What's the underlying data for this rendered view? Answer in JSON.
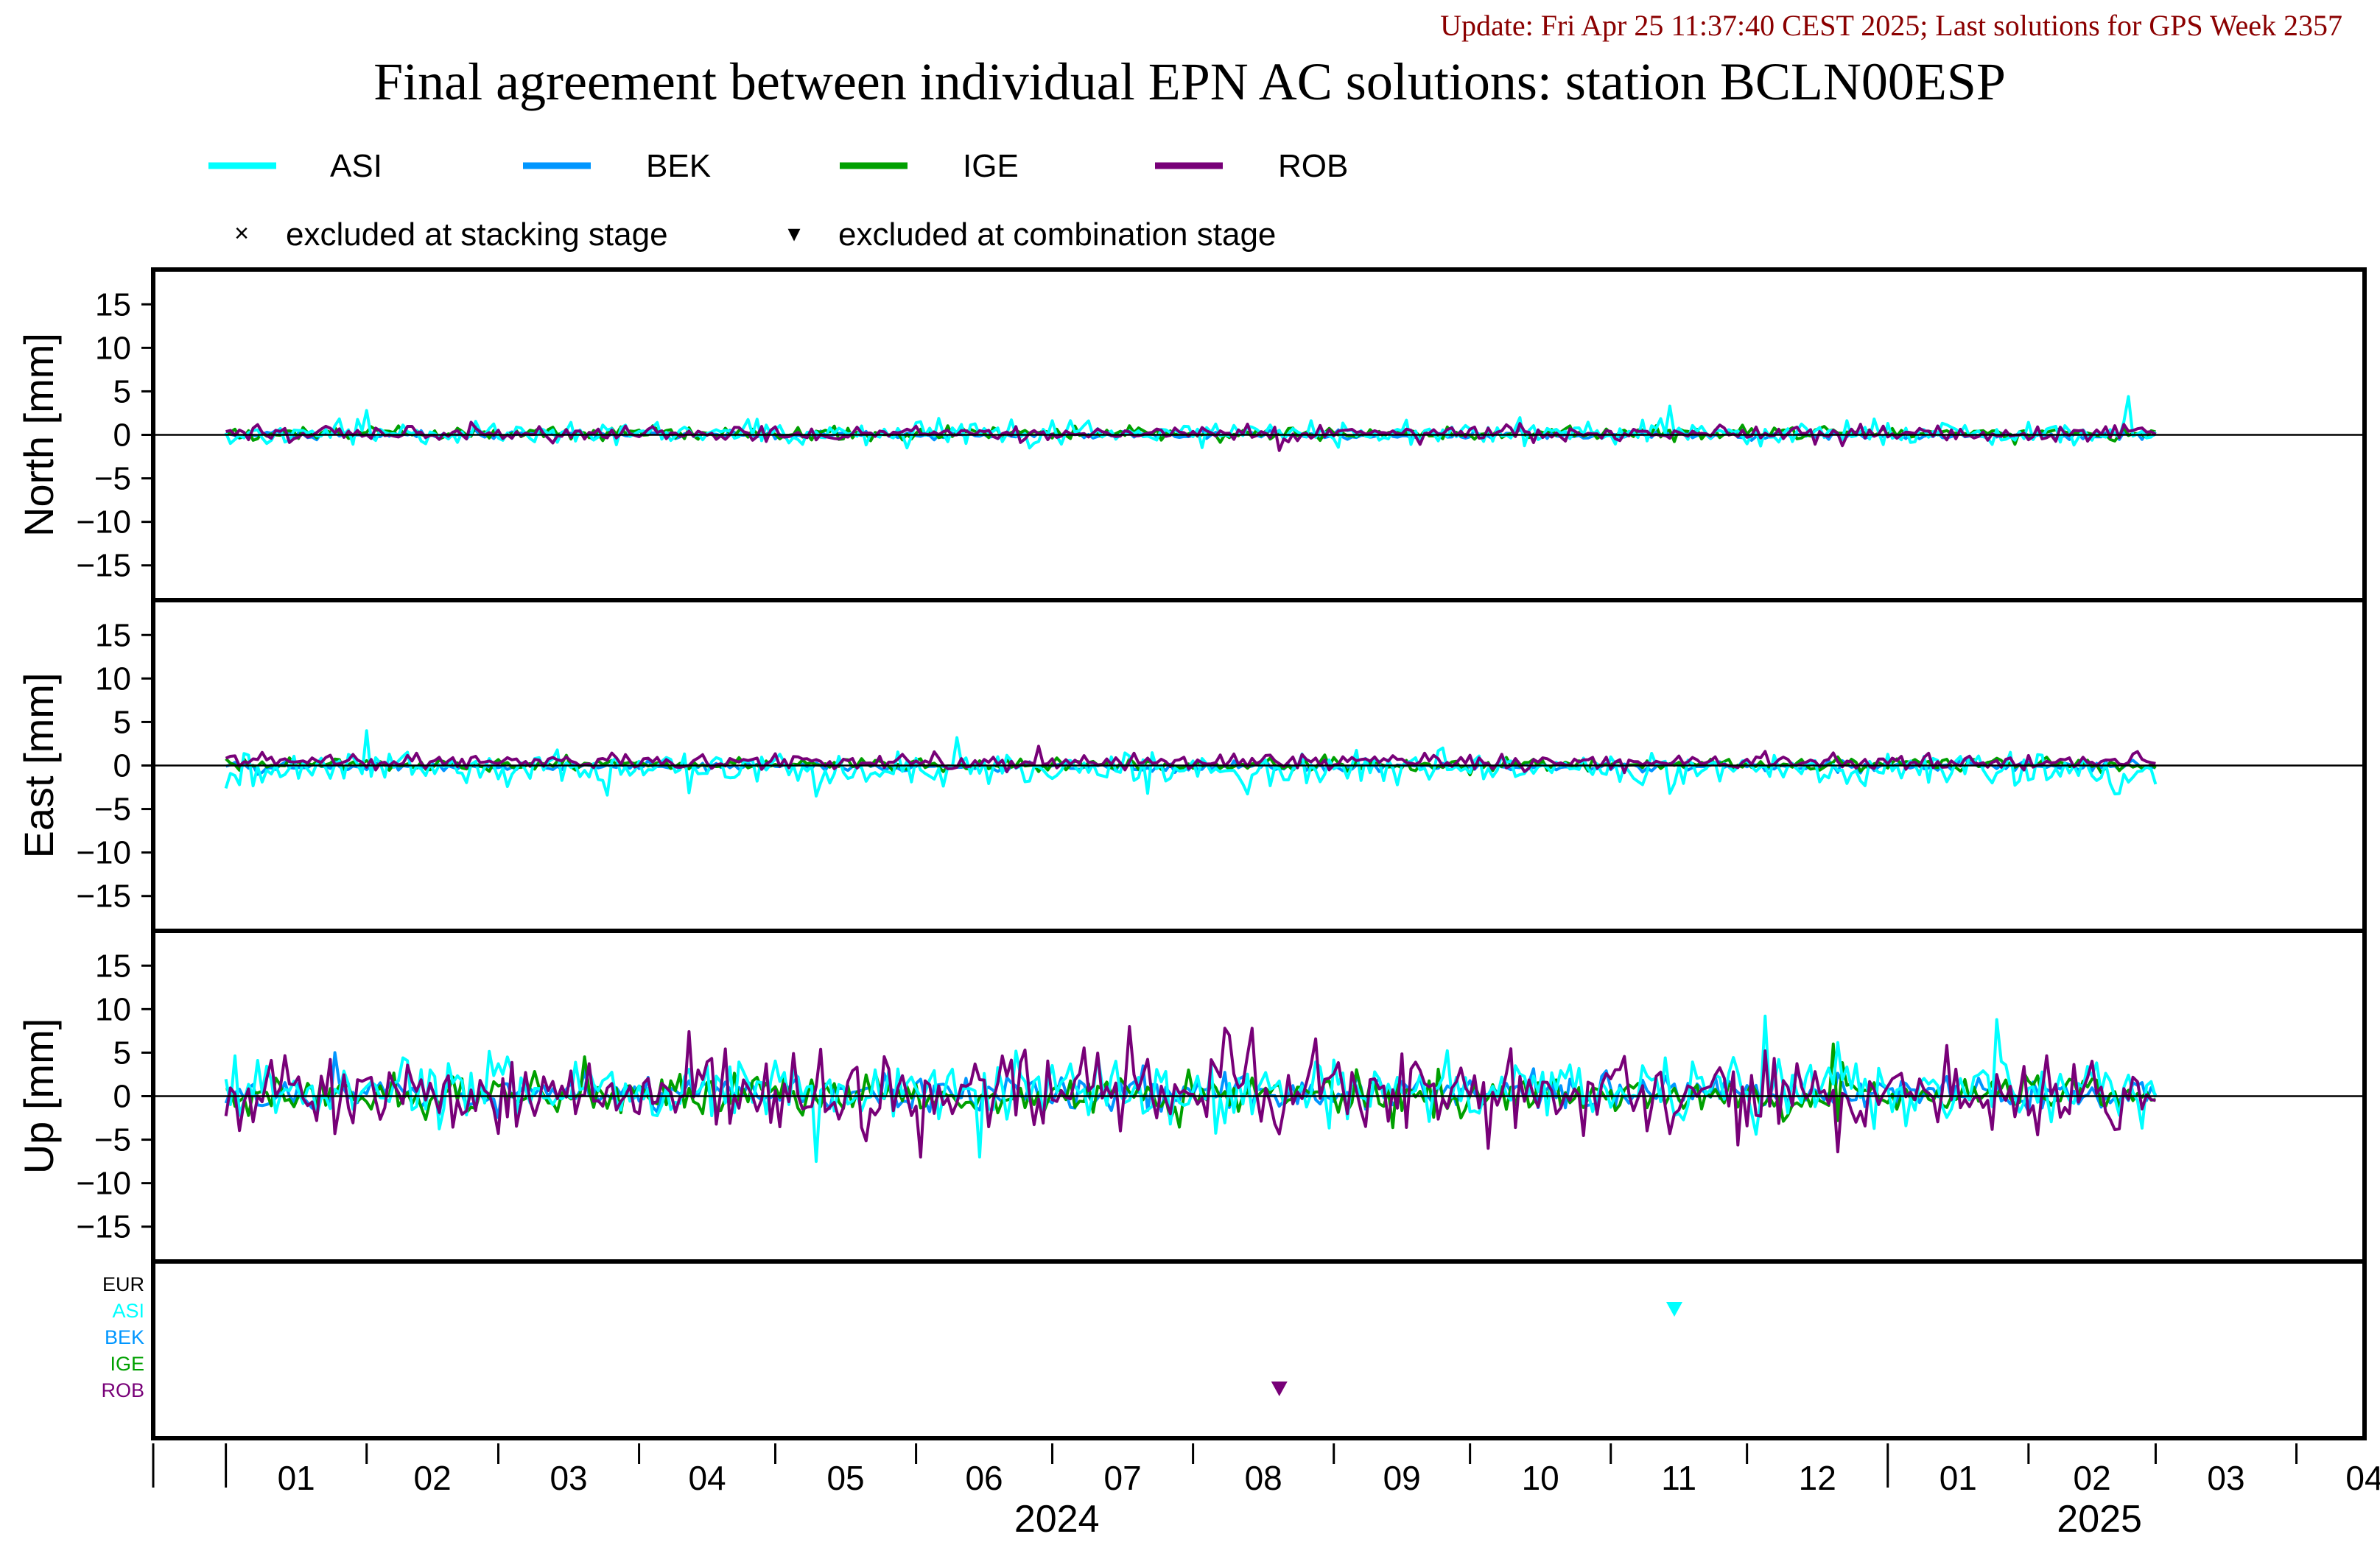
{
  "header": {
    "update_line": "Update: Fri Apr 25 11:37:40 CEST 2025; Last solutions for GPS Week 2357",
    "title": "Final agreement between individual EPN AC solutions: station BCLN00ESP"
  },
  "legend": {
    "series": [
      {
        "name": "ASI",
        "color": "#00FFFF"
      },
      {
        "name": "BEK",
        "color": "#0096FF"
      },
      {
        "name": "IGE",
        "color": "#00A000"
      },
      {
        "name": "ROB",
        "color": "#780078"
      }
    ],
    "markers": [
      {
        "symbol": "×",
        "label": "excluded at stacking stage"
      },
      {
        "symbol": "▾",
        "label": "excluded at combination stage"
      }
    ]
  },
  "colors": {
    "ASI": "#00FFFF",
    "BEK": "#0096FF",
    "IGE": "#00A000",
    "ROB": "#780078",
    "EUR": "#000000",
    "frame": "#000000"
  },
  "chart_data": {
    "type": "line",
    "x_range": [
      "2023-12-16",
      "2025-04-16"
    ],
    "y_range": [
      -19,
      19
    ],
    "y_ticks": [
      15,
      10,
      5,
      0,
      -5,
      -10,
      -15
    ],
    "y_tick_labels": [
      "15",
      "10",
      "5",
      "0",
      "−5",
      "−10",
      "−15"
    ],
    "month_labels": [
      "01",
      "02",
      "03",
      "04",
      "05",
      "06",
      "07",
      "08",
      "09",
      "10",
      "11",
      "12",
      "01",
      "02",
      "03",
      "04"
    ],
    "year_labels": [
      "2024",
      "2025"
    ],
    "data_start": "2024-01-01",
    "data_end": "2025-03-01",
    "panels": [
      {
        "ylabel": "North [mm]",
        "spread": {
          "ASI": 0.9,
          "BEK": 0.3,
          "IGE": 0.5,
          "ROB": 0.6
        },
        "bias": {
          "ASI": 0.2,
          "BEK": 0.0,
          "IGE": 0.2,
          "ROB": 0.1
        },
        "spikes": [
          {
            "series": "ASI",
            "date": "2024-02-01",
            "value": 2.8
          },
          {
            "series": "ASI",
            "date": "2024-11-14",
            "value": 3.3
          },
          {
            "series": "ASI",
            "date": "2025-02-23",
            "value": 4.4
          },
          {
            "series": "ROB",
            "date": "2024-08-20",
            "value": -1.8
          }
        ]
      },
      {
        "ylabel": "East [mm]",
        "spread": {
          "ASI": 1.3,
          "BEK": 0.4,
          "IGE": 0.5,
          "ROB": 0.6
        },
        "bias": {
          "ASI": -0.5,
          "BEK": -0.1,
          "IGE": 0.1,
          "ROB": 0.4
        },
        "spikes": [
          {
            "series": "ASI",
            "date": "2024-02-01",
            "value": 4.0
          },
          {
            "series": "ASI",
            "date": "2024-06-10",
            "value": 3.2
          },
          {
            "series": "ASI",
            "date": "2024-03-25",
            "value": -3.4
          },
          {
            "series": "ASI",
            "date": "2024-07-22",
            "value": -3.2
          },
          {
            "series": "ASI",
            "date": "2024-11-14",
            "value": -3.2
          }
        ]
      },
      {
        "ylabel": "Up [mm]",
        "spread": {
          "ASI": 2.6,
          "BEK": 1.3,
          "IGE": 1.6,
          "ROB": 2.9
        },
        "bias": {
          "ASI": 0.8,
          "BEK": 0.4,
          "IGE": 0.2,
          "ROB": 0.3
        },
        "spikes": [
          {
            "series": "ASI",
            "date": "2024-05-10",
            "value": -7.5
          },
          {
            "series": "ASI",
            "date": "2024-06-15",
            "value": -7.0
          },
          {
            "series": "ASI",
            "date": "2024-12-05",
            "value": 9.2
          },
          {
            "series": "ASI",
            "date": "2025-01-25",
            "value": 8.8
          },
          {
            "series": "ROB",
            "date": "2024-06-02",
            "value": -7.0
          },
          {
            "series": "ROB",
            "date": "2024-08-08",
            "value": 7.8
          },
          {
            "series": "ROB",
            "date": "2024-08-14",
            "value": 7.8
          },
          {
            "series": "ROB",
            "date": "2024-07-18",
            "value": 8.0
          },
          {
            "series": "ROB",
            "date": "2024-10-05",
            "value": -6.0
          },
          {
            "series": "IGE",
            "date": "2024-12-20",
            "value": 6.0
          },
          {
            "series": "BEK",
            "date": "2024-01-25",
            "value": 5.0
          }
        ]
      }
    ],
    "exclusion_panel": {
      "labels": [
        "EUR",
        "ASI",
        "BEK",
        "IGE",
        "ROB"
      ],
      "combination_markers": [
        {
          "series": "ASI",
          "date": "2024-11-15"
        },
        {
          "series": "ROB",
          "date": "2024-08-20"
        }
      ],
      "stacking_markers": []
    }
  }
}
